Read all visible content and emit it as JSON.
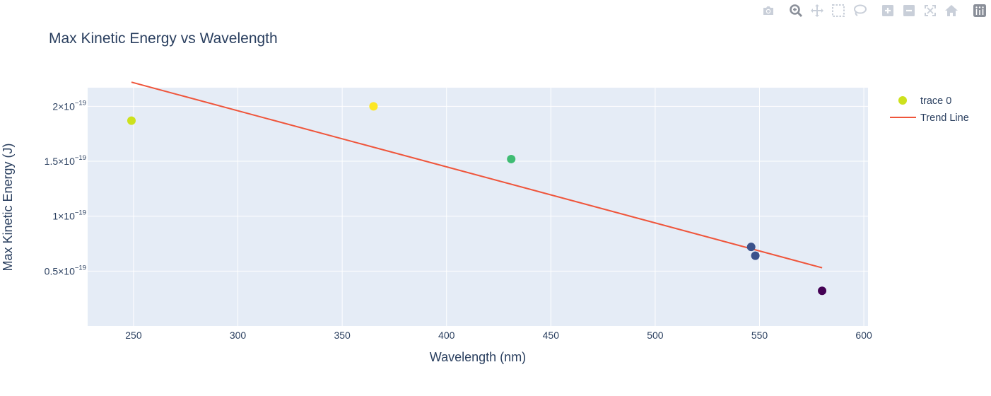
{
  "chart_data": {
    "type": "scatter",
    "title": "Max Kinetic Energy vs Wavelength",
    "xlabel": "Wavelength (nm)",
    "ylabel": "Max Kinetic Energy (J)",
    "xlim": [
      228,
      602
    ],
    "ylim": [
      0.0,
      2.17e-19
    ],
    "x_ticks": [
      250,
      300,
      350,
      400,
      450,
      500,
      550,
      600
    ],
    "y_ticks": [
      {
        "value": 5e-20,
        "mantissa": "0.5",
        "exponent": "−19"
      },
      {
        "value": 1e-19,
        "mantissa": "1",
        "exponent": "−19"
      },
      {
        "value": 1.5e-19,
        "mantissa": "1.5",
        "exponent": "−19"
      },
      {
        "value": 2e-19,
        "mantissa": "2",
        "exponent": "−19"
      }
    ],
    "times_sign": "×",
    "tick_base": "10",
    "grid": true,
    "legend_position": "top-right",
    "series": [
      {
        "name": "trace 0",
        "mode": "markers",
        "legend_color": "#cde11d",
        "points": [
          {
            "x": 249,
            "y": 1.87e-19,
            "color": "#cde11d"
          },
          {
            "x": 365,
            "y": 2e-19,
            "color": "#fde725"
          },
          {
            "x": 431,
            "y": 1.52e-19,
            "color": "#3fbc73"
          },
          {
            "x": 546,
            "y": 7.2e-20,
            "color": "#3b528b"
          },
          {
            "x": 548,
            "y": 6.4e-20,
            "color": "#3b528b"
          },
          {
            "x": 580,
            "y": 3.2e-20,
            "color": "#440154"
          }
        ]
      },
      {
        "name": "Trend Line",
        "mode": "lines",
        "color": "#ef553b",
        "points": [
          {
            "x": 249,
            "y": 2.22e-19
          },
          {
            "x": 580,
            "y": 5.3e-20
          }
        ]
      }
    ]
  },
  "modebar": {
    "buttons": [
      {
        "name": "camera-icon"
      },
      {
        "name": "zoom-icon"
      },
      {
        "name": "pan-icon"
      },
      {
        "name": "box-select-icon"
      },
      {
        "name": "lasso-select-icon"
      },
      {
        "name": "zoom-in-icon"
      },
      {
        "name": "zoom-out-icon"
      },
      {
        "name": "autoscale-icon"
      },
      {
        "name": "reset-axes-icon"
      },
      {
        "name": "plotly-logo-icon"
      }
    ],
    "icon_color": "#c9cfd9",
    "logo_color": "#8a8f99"
  }
}
